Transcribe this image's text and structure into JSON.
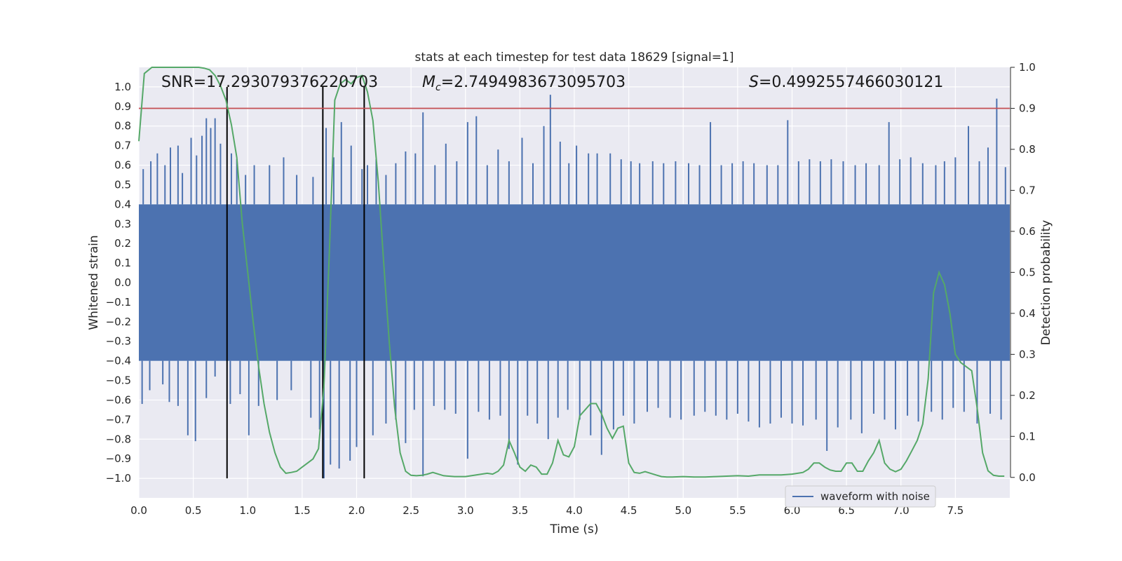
{
  "chart_data": {
    "type": "line",
    "title": "stats at each timestep for test data 18629 [signal=1]",
    "xlabel": "Time (s)",
    "ylabel": "Whitened strain",
    "y2label": "Detection probability",
    "xlim": [
      0.0,
      8.0
    ],
    "ylim": [
      -1.1,
      1.1
    ],
    "y2lim": [
      -0.05,
      1.0
    ],
    "xticks": [
      0.0,
      0.5,
      1.0,
      1.5,
      2.0,
      2.5,
      3.0,
      3.5,
      4.0,
      4.5,
      5.0,
      5.5,
      6.0,
      6.5,
      7.0,
      7.5
    ],
    "xtick_labels": [
      "0.0",
      "0.5",
      "1.0",
      "1.5",
      "2.0",
      "2.5",
      "3.0",
      "3.5",
      "4.0",
      "4.5",
      "5.0",
      "5.5",
      "6.0",
      "6.5",
      "7.0",
      "7.5"
    ],
    "yticks": [
      1.0,
      0.9,
      0.8,
      0.7,
      0.6,
      0.5,
      0.4,
      0.3,
      0.2,
      0.1,
      0.0,
      -0.1,
      -0.2,
      -0.3,
      -0.4,
      -0.5,
      -0.6,
      -0.7,
      -0.8,
      -0.9,
      -1.0
    ],
    "ytick_labels": [
      "1.0",
      "0.9",
      "0.8",
      "0.7",
      "0.6",
      "0.5",
      "0.4",
      "0.3",
      "0.2",
      "0.1",
      "0.0",
      "−0.1",
      "−0.2",
      "−0.3",
      "−0.4",
      "−0.5",
      "−0.6",
      "−0.7",
      "−0.8",
      "−0.9",
      "−1.0"
    ],
    "y2ticks": [
      1.0,
      0.9,
      0.8,
      0.7,
      0.6,
      0.5,
      0.4,
      0.3,
      0.2,
      0.1,
      0.0
    ],
    "y2tick_labels": [
      "1.0",
      "0.9",
      "0.8",
      "0.7",
      "0.6",
      "0.5",
      "0.4",
      "0.3",
      "0.2",
      "0.1",
      "0.0"
    ],
    "grid": true,
    "legend_position": "lower-right",
    "annotations": {
      "snr": "SNR=17.293079376220703",
      "mc_symbol": "M",
      "mc_sub": "c",
      "mc_value": "=2.7494983673095703",
      "s_symbol": "S",
      "s_value": "=0.4992557466030121"
    },
    "threshold": {
      "axis": "y2",
      "value": 0.9,
      "color": "#c44e52"
    },
    "vertical_markers": [
      0.81,
      1.69,
      2.07
    ],
    "series": [
      {
        "name": "waveform with noise",
        "axis": "y",
        "color": "#4c72b0",
        "band_lower": -0.4,
        "band_upper": 0.4,
        "peaks": [
          [
            0.04,
            0.58
          ],
          [
            0.11,
            0.62
          ],
          [
            0.17,
            0.66
          ],
          [
            0.24,
            0.6
          ],
          [
            0.29,
            0.69
          ],
          [
            0.36,
            0.7
          ],
          [
            0.4,
            0.56
          ],
          [
            0.48,
            0.74
          ],
          [
            0.53,
            0.65
          ],
          [
            0.58,
            0.75
          ],
          [
            0.62,
            0.84
          ],
          [
            0.66,
            0.79
          ],
          [
            0.7,
            0.84
          ],
          [
            0.75,
            0.71
          ],
          [
            0.85,
            0.66
          ],
          [
            0.9,
            0.63
          ],
          [
            0.98,
            0.55
          ],
          [
            1.06,
            0.6
          ],
          [
            1.2,
            0.6
          ],
          [
            1.33,
            0.64
          ],
          [
            1.45,
            0.55
          ],
          [
            1.6,
            0.54
          ],
          [
            1.72,
            0.79
          ],
          [
            1.79,
            0.64
          ],
          [
            1.86,
            0.82
          ],
          [
            1.95,
            0.7
          ],
          [
            2.05,
            0.58
          ],
          [
            2.1,
            0.6
          ],
          [
            2.18,
            0.63
          ],
          [
            2.27,
            0.55
          ],
          [
            2.36,
            0.61
          ],
          [
            2.45,
            0.67
          ],
          [
            2.54,
            0.66
          ],
          [
            2.61,
            0.87
          ],
          [
            2.72,
            0.6
          ],
          [
            2.82,
            0.71
          ],
          [
            2.92,
            0.62
          ],
          [
            3.02,
            0.82
          ],
          [
            3.1,
            0.85
          ],
          [
            3.2,
            0.6
          ],
          [
            3.3,
            0.68
          ],
          [
            3.4,
            0.62
          ],
          [
            3.52,
            0.74
          ],
          [
            3.62,
            0.61
          ],
          [
            3.72,
            0.8
          ],
          [
            3.78,
            0.96
          ],
          [
            3.87,
            0.72
          ],
          [
            3.95,
            0.61
          ],
          [
            4.02,
            0.7
          ],
          [
            4.13,
            0.66
          ],
          [
            4.21,
            0.66
          ],
          [
            4.33,
            0.66
          ],
          [
            4.43,
            0.63
          ],
          [
            4.52,
            0.62
          ],
          [
            4.6,
            0.61
          ],
          [
            4.72,
            0.62
          ],
          [
            4.82,
            0.61
          ],
          [
            4.93,
            0.62
          ],
          [
            5.05,
            0.61
          ],
          [
            5.15,
            0.6
          ],
          [
            5.25,
            0.82
          ],
          [
            5.35,
            0.6
          ],
          [
            5.45,
            0.61
          ],
          [
            5.55,
            0.62
          ],
          [
            5.65,
            0.61
          ],
          [
            5.77,
            0.6
          ],
          [
            5.87,
            0.6
          ],
          [
            5.96,
            0.83
          ],
          [
            6.06,
            0.62
          ],
          [
            6.16,
            0.63
          ],
          [
            6.26,
            0.62
          ],
          [
            6.36,
            0.63
          ],
          [
            6.47,
            0.62
          ],
          [
            6.58,
            0.6
          ],
          [
            6.68,
            0.61
          ],
          [
            6.8,
            0.6
          ],
          [
            6.89,
            0.82
          ],
          [
            6.99,
            0.63
          ],
          [
            7.09,
            0.64
          ],
          [
            7.2,
            0.61
          ],
          [
            7.32,
            0.6
          ],
          [
            7.4,
            0.62
          ],
          [
            7.5,
            0.64
          ],
          [
            7.62,
            0.8
          ],
          [
            7.72,
            0.62
          ],
          [
            7.8,
            0.69
          ],
          [
            7.88,
            0.94
          ],
          [
            7.96,
            0.59
          ]
        ],
        "troughs": [
          [
            0.03,
            -0.62
          ],
          [
            0.1,
            -0.55
          ],
          [
            0.22,
            -0.52
          ],
          [
            0.28,
            -0.61
          ],
          [
            0.36,
            -0.63
          ],
          [
            0.45,
            -0.78
          ],
          [
            0.52,
            -0.81
          ],
          [
            0.62,
            -0.59
          ],
          [
            0.7,
            -0.48
          ],
          [
            0.84,
            -0.62
          ],
          [
            0.93,
            -0.57
          ],
          [
            1.01,
            -0.78
          ],
          [
            1.1,
            -0.63
          ],
          [
            1.27,
            -0.6
          ],
          [
            1.4,
            -0.55
          ],
          [
            1.58,
            -0.69
          ],
          [
            1.66,
            -0.75
          ],
          [
            1.7,
            -1.0
          ],
          [
            1.76,
            -0.93
          ],
          [
            1.84,
            -0.95
          ],
          [
            1.94,
            -0.91
          ],
          [
            2.0,
            -0.84
          ],
          [
            2.15,
            -0.78
          ],
          [
            2.27,
            -0.72
          ],
          [
            2.36,
            -0.7
          ],
          [
            2.45,
            -0.82
          ],
          [
            2.53,
            -0.65
          ],
          [
            2.61,
            -0.99
          ],
          [
            2.71,
            -0.63
          ],
          [
            2.81,
            -0.65
          ],
          [
            2.91,
            -0.67
          ],
          [
            3.02,
            -0.9
          ],
          [
            3.12,
            -0.66
          ],
          [
            3.22,
            -0.7
          ],
          [
            3.32,
            -0.68
          ],
          [
            3.4,
            -0.85
          ],
          [
            3.48,
            -0.93
          ],
          [
            3.57,
            -0.68
          ],
          [
            3.66,
            -0.72
          ],
          [
            3.76,
            -0.8
          ],
          [
            3.85,
            -0.69
          ],
          [
            3.94,
            -0.65
          ],
          [
            4.05,
            -0.7
          ],
          [
            4.15,
            -0.78
          ],
          [
            4.25,
            -0.88
          ],
          [
            4.36,
            -0.75
          ],
          [
            4.45,
            -0.68
          ],
          [
            4.55,
            -0.72
          ],
          [
            4.67,
            -0.66
          ],
          [
            4.77,
            -0.64
          ],
          [
            4.88,
            -0.69
          ],
          [
            4.98,
            -0.7
          ],
          [
            5.1,
            -0.68
          ],
          [
            5.2,
            -0.66
          ],
          [
            5.3,
            -0.68
          ],
          [
            5.4,
            -0.7
          ],
          [
            5.5,
            -0.67
          ],
          [
            5.6,
            -0.71
          ],
          [
            5.7,
            -0.74
          ],
          [
            5.8,
            -0.72
          ],
          [
            5.9,
            -0.69
          ],
          [
            6.0,
            -0.72
          ],
          [
            6.1,
            -0.73
          ],
          [
            6.22,
            -0.7
          ],
          [
            6.32,
            -0.86
          ],
          [
            6.42,
            -0.74
          ],
          [
            6.54,
            -0.7
          ],
          [
            6.64,
            -0.77
          ],
          [
            6.75,
            -0.67
          ],
          [
            6.85,
            -0.7
          ],
          [
            6.95,
            -0.75
          ],
          [
            7.06,
            -0.68
          ],
          [
            7.16,
            -0.71
          ],
          [
            7.28,
            -0.66
          ],
          [
            7.38,
            -0.7
          ],
          [
            7.48,
            -0.64
          ],
          [
            7.58,
            -0.66
          ],
          [
            7.7,
            -0.72
          ],
          [
            7.82,
            -0.67
          ],
          [
            7.92,
            -0.7
          ]
        ]
      },
      {
        "name": "",
        "axis": "y2",
        "color": "#55a868",
        "x": [
          0.0,
          0.05,
          0.12,
          0.2,
          0.3,
          0.4,
          0.5,
          0.55,
          0.6,
          0.65,
          0.7,
          0.75,
          0.8,
          0.85,
          0.9,
          0.95,
          1.0,
          1.05,
          1.1,
          1.15,
          1.2,
          1.25,
          1.3,
          1.35,
          1.4,
          1.45,
          1.5,
          1.55,
          1.6,
          1.65,
          1.7,
          1.75,
          1.8,
          1.85,
          1.9,
          1.95,
          2.0,
          2.05,
          2.1,
          2.15,
          2.2,
          2.25,
          2.3,
          2.35,
          2.4,
          2.45,
          2.5,
          2.55,
          2.6,
          2.65,
          2.7,
          2.8,
          2.9,
          3.0,
          3.1,
          3.2,
          3.25,
          3.3,
          3.35,
          3.4,
          3.45,
          3.5,
          3.55,
          3.6,
          3.65,
          3.7,
          3.75,
          3.8,
          3.85,
          3.9,
          3.95,
          4.0,
          4.05,
          4.1,
          4.15,
          4.2,
          4.25,
          4.3,
          4.35,
          4.4,
          4.45,
          4.5,
          4.55,
          4.6,
          4.65,
          4.7,
          4.75,
          4.8,
          4.85,
          4.9,
          5.0,
          5.1,
          5.2,
          5.3,
          5.4,
          5.5,
          5.6,
          5.7,
          5.8,
          5.9,
          6.0,
          6.1,
          6.15,
          6.2,
          6.25,
          6.3,
          6.35,
          6.4,
          6.45,
          6.5,
          6.55,
          6.6,
          6.65,
          6.7,
          6.75,
          6.8,
          6.85,
          6.9,
          6.95,
          7.0,
          7.05,
          7.1,
          7.15,
          7.2,
          7.25,
          7.3,
          7.35,
          7.4,
          7.45,
          7.5,
          7.55,
          7.6,
          7.65,
          7.7,
          7.75,
          7.8,
          7.85,
          7.9,
          7.95
        ],
        "values": [
          0.82,
          0.985,
          1.0,
          1.0,
          1.0,
          1.0,
          1.0,
          1.0,
          0.998,
          0.994,
          0.98,
          0.955,
          0.92,
          0.86,
          0.78,
          0.62,
          0.5,
          0.38,
          0.27,
          0.18,
          0.11,
          0.06,
          0.025,
          0.01,
          0.012,
          0.015,
          0.025,
          0.035,
          0.045,
          0.07,
          0.22,
          0.55,
          0.92,
          0.96,
          0.97,
          0.96,
          0.975,
          0.98,
          0.94,
          0.87,
          0.72,
          0.52,
          0.33,
          0.17,
          0.06,
          0.015,
          0.005,
          0.004,
          0.005,
          0.008,
          0.012,
          0.004,
          0.002,
          0.002,
          0.006,
          0.01,
          0.008,
          0.015,
          0.03,
          0.09,
          0.06,
          0.025,
          0.015,
          0.03,
          0.025,
          0.008,
          0.008,
          0.035,
          0.09,
          0.055,
          0.05,
          0.075,
          0.15,
          0.165,
          0.18,
          0.18,
          0.155,
          0.12,
          0.095,
          0.12,
          0.125,
          0.035,
          0.012,
          0.01,
          0.014,
          0.01,
          0.006,
          0.002,
          0.001,
          0.001,
          0.002,
          0.001,
          0.001,
          0.002,
          0.003,
          0.004,
          0.003,
          0.006,
          0.006,
          0.006,
          0.008,
          0.012,
          0.02,
          0.035,
          0.035,
          0.025,
          0.018,
          0.015,
          0.015,
          0.035,
          0.035,
          0.015,
          0.015,
          0.04,
          0.06,
          0.09,
          0.035,
          0.02,
          0.014,
          0.02,
          0.04,
          0.065,
          0.09,
          0.13,
          0.24,
          0.45,
          0.5,
          0.47,
          0.4,
          0.3,
          0.28,
          0.27,
          0.26,
          0.17,
          0.06,
          0.016,
          0.005,
          0.003,
          0.003
        ]
      }
    ]
  }
}
